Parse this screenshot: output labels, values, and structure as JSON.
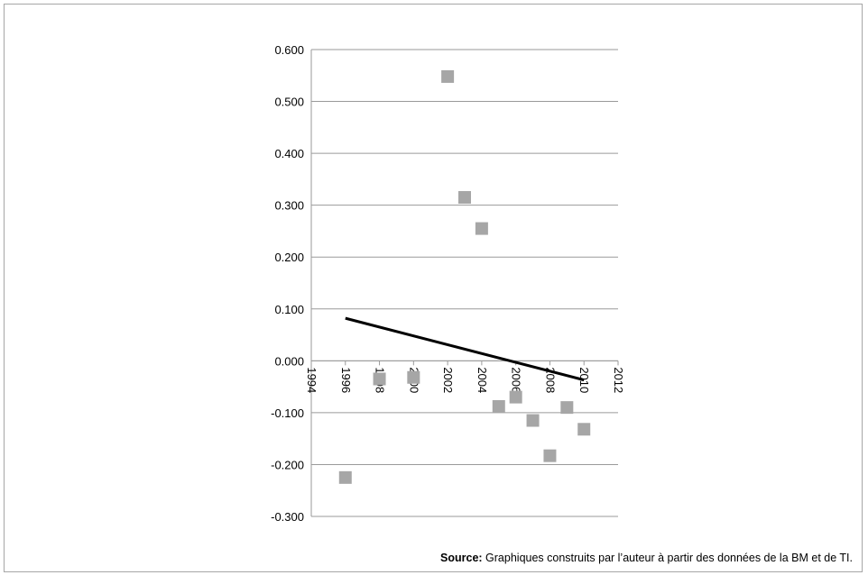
{
  "colors": {
    "marker": "#a6a6a6",
    "trendline": "#000000",
    "gridline": "#9a9a9a",
    "frame": "#a6a6a6"
  },
  "chart_data": {
    "type": "scatter",
    "title": "",
    "xlabel": "",
    "ylabel": "",
    "xlim": [
      1994,
      2012
    ],
    "ylim": [
      -0.3,
      0.6
    ],
    "x_ticks": [
      "1994",
      "1996",
      "1998",
      "2000",
      "2002",
      "2004",
      "2006",
      "2008",
      "2010",
      "2012"
    ],
    "y_ticks": [
      "0.600",
      "0.500",
      "0.400",
      "0.300",
      "0.200",
      "0.100",
      "0.000",
      "-0.100",
      "-0.200",
      "-0.300"
    ],
    "grid": "horizontal",
    "legend": "none",
    "series": [
      {
        "marker": "square",
        "points": [
          {
            "x": 1996,
            "y": -0.225
          },
          {
            "x": 1998,
            "y": -0.035
          },
          {
            "x": 2000,
            "y": -0.032
          },
          {
            "x": 2002,
            "y": 0.548
          },
          {
            "x": 2003,
            "y": 0.315
          },
          {
            "x": 2004,
            "y": 0.255
          },
          {
            "x": 2005,
            "y": -0.088
          },
          {
            "x": 2006,
            "y": -0.07
          },
          {
            "x": 2007,
            "y": -0.115
          },
          {
            "x": 2008,
            "y": -0.183
          },
          {
            "x": 2009,
            "y": -0.09
          },
          {
            "x": 2010,
            "y": -0.132
          }
        ]
      }
    ],
    "trendline": {
      "type": "linear",
      "start": {
        "x": 1996,
        "y": 0.082
      },
      "end": {
        "x": 2010,
        "y": -0.037
      }
    }
  },
  "source": {
    "label": "Source:",
    "text": " Graphiques construits par l’auteur à partir des données de la BM et de TI."
  }
}
